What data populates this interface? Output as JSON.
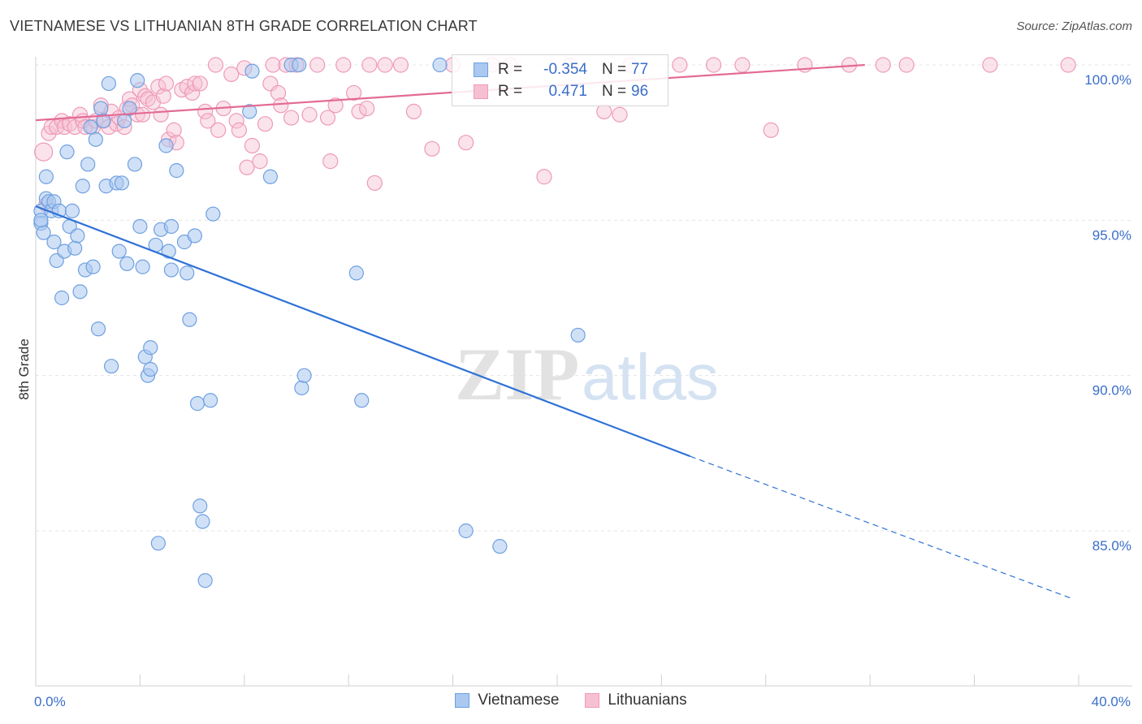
{
  "title": "VIETNAMESE VS LITHUANIAN 8TH GRADE CORRELATION CHART",
  "source": "Source: ZipAtlas.com",
  "watermark": {
    "zip": "ZIP",
    "atlas": "atlas"
  },
  "colors": {
    "vietnamese_fill": "#aac8f0",
    "vietnamese_stroke": "#6fa0e0",
    "vietnamese_line": "#2f72d6",
    "lithuanian_fill": "#f7c0d2",
    "lithuanian_stroke": "#ee9ab8",
    "lithuanian_line": "#e36b95",
    "axis_text": "#3a6ec9"
  },
  "legend": {
    "rows": [
      {
        "r_label": "R =",
        "r_value": "-0.354",
        "n_label": "N =",
        "n_value": "77"
      },
      {
        "r_label": "R =",
        "r_value": "0.471",
        "n_label": "N =",
        "n_value": "96"
      }
    ]
  },
  "bottom_legend": [
    "Vietnamese",
    "Lithuanians"
  ],
  "chart_data": {
    "type": "scatter",
    "title": "VIETNAMESE VS LITHUANIAN 8TH GRADE CORRELATION CHART",
    "xlabel": "",
    "ylabel": "8th Grade",
    "xlim": [
      0,
      40
    ],
    "ylim": [
      80.8,
      100.9
    ],
    "x_tick_labels": [
      "0.0%",
      "40.0%"
    ],
    "y_ticks": [
      100,
      95,
      90,
      85
    ],
    "y_tick_labels": [
      "100.0%",
      "95.0%",
      "90.0%",
      "85.0%"
    ],
    "grid": true,
    "legend_position": "top-center",
    "series": [
      {
        "name": "Vietnamese",
        "points": [
          [
            0.2,
            95.3
          ],
          [
            0.2,
            94.9
          ],
          [
            0.3,
            94.6
          ],
          [
            0.4,
            95.7
          ],
          [
            0.4,
            96.4
          ],
          [
            0.5,
            95.6
          ],
          [
            0.6,
            95.3
          ],
          [
            0.7,
            95.6
          ],
          [
            0.7,
            94.3
          ],
          [
            0.8,
            93.7
          ],
          [
            0.9,
            95.3
          ],
          [
            1.0,
            92.5
          ],
          [
            1.1,
            94.0
          ],
          [
            1.2,
            97.2
          ],
          [
            1.3,
            94.8
          ],
          [
            1.4,
            95.3
          ],
          [
            1.5,
            94.1
          ],
          [
            1.6,
            94.5
          ],
          [
            1.7,
            92.7
          ],
          [
            1.8,
            96.1
          ],
          [
            1.9,
            93.4
          ],
          [
            2.0,
            96.8
          ],
          [
            2.1,
            98.0
          ],
          [
            2.2,
            93.5
          ],
          [
            2.3,
            97.6
          ],
          [
            2.4,
            91.5
          ],
          [
            2.5,
            98.6
          ],
          [
            2.6,
            98.2
          ],
          [
            2.7,
            96.1
          ],
          [
            2.8,
            99.4
          ],
          [
            2.9,
            90.3
          ],
          [
            3.1,
            96.2
          ],
          [
            3.2,
            94.0
          ],
          [
            3.3,
            96.2
          ],
          [
            3.4,
            98.2
          ],
          [
            3.5,
            93.6
          ],
          [
            3.6,
            98.6
          ],
          [
            3.8,
            96.8
          ],
          [
            3.9,
            99.5
          ],
          [
            4.0,
            94.8
          ],
          [
            4.1,
            93.5
          ],
          [
            4.2,
            90.6
          ],
          [
            4.3,
            90.0
          ],
          [
            4.4,
            90.9
          ],
          [
            4.4,
            90.2
          ],
          [
            4.6,
            94.2
          ],
          [
            4.7,
            84.6
          ],
          [
            4.8,
            94.7
          ],
          [
            5.0,
            97.4
          ],
          [
            5.1,
            94.0
          ],
          [
            5.2,
            93.4
          ],
          [
            5.2,
            94.8
          ],
          [
            5.4,
            96.6
          ],
          [
            5.7,
            94.3
          ],
          [
            5.8,
            93.3
          ],
          [
            5.9,
            91.8
          ],
          [
            6.1,
            94.5
          ],
          [
            6.2,
            89.1
          ],
          [
            6.3,
            85.8
          ],
          [
            6.4,
            85.3
          ],
          [
            6.5,
            83.4
          ],
          [
            6.7,
            89.2
          ],
          [
            6.8,
            95.2
          ],
          [
            8.2,
            98.5
          ],
          [
            8.3,
            99.8
          ],
          [
            9.0,
            96.4
          ],
          [
            9.8,
            100.0
          ],
          [
            10.1,
            100.0
          ],
          [
            10.2,
            89.6
          ],
          [
            10.3,
            90.0
          ],
          [
            12.3,
            93.3
          ],
          [
            12.5,
            89.2
          ],
          [
            15.5,
            100.0
          ],
          [
            16.5,
            85.0
          ],
          [
            17.8,
            84.5
          ],
          [
            20.8,
            91.3
          ],
          [
            0.2,
            95.0
          ]
        ],
        "trend": {
          "x": [
            0,
            25.1
          ],
          "y": [
            95.45,
            87.4
          ]
        },
        "trend_dashed": {
          "x": [
            25.1,
            39.8
          ],
          "y": [
            87.4,
            82.8
          ]
        }
      },
      {
        "name": "Lithuanians",
        "points": [
          [
            0.3,
            97.2
          ],
          [
            0.4,
            95.5
          ],
          [
            0.5,
            97.8
          ],
          [
            0.6,
            98.0
          ],
          [
            0.8,
            98.0
          ],
          [
            1.0,
            98.2
          ],
          [
            1.1,
            98.0
          ],
          [
            1.3,
            98.1
          ],
          [
            1.5,
            98.0
          ],
          [
            1.7,
            98.4
          ],
          [
            1.8,
            98.2
          ],
          [
            1.9,
            98.0
          ],
          [
            2.2,
            98.0
          ],
          [
            2.3,
            98.2
          ],
          [
            2.5,
            98.7
          ],
          [
            2.6,
            98.2
          ],
          [
            2.8,
            98.0
          ],
          [
            2.9,
            98.5
          ],
          [
            3.1,
            98.1
          ],
          [
            3.2,
            98.3
          ],
          [
            3.4,
            98.0
          ],
          [
            3.5,
            98.6
          ],
          [
            3.6,
            98.9
          ],
          [
            3.7,
            98.7
          ],
          [
            3.9,
            98.4
          ],
          [
            4.0,
            99.2
          ],
          [
            4.1,
            98.4
          ],
          [
            4.2,
            99.0
          ],
          [
            4.3,
            98.9
          ],
          [
            4.5,
            98.8
          ],
          [
            4.7,
            99.3
          ],
          [
            4.8,
            98.4
          ],
          [
            4.9,
            99.0
          ],
          [
            5.0,
            99.4
          ],
          [
            5.1,
            97.6
          ],
          [
            5.3,
            97.9
          ],
          [
            5.4,
            97.5
          ],
          [
            5.6,
            99.2
          ],
          [
            5.8,
            99.3
          ],
          [
            6.0,
            99.1
          ],
          [
            6.1,
            99.4
          ],
          [
            6.3,
            99.4
          ],
          [
            6.5,
            98.5
          ],
          [
            6.6,
            98.2
          ],
          [
            6.9,
            100.0
          ],
          [
            7.0,
            97.9
          ],
          [
            7.2,
            98.6
          ],
          [
            7.5,
            99.7
          ],
          [
            7.7,
            98.2
          ],
          [
            7.8,
            97.9
          ],
          [
            8.0,
            99.9
          ],
          [
            8.1,
            96.7
          ],
          [
            8.3,
            97.4
          ],
          [
            8.6,
            96.9
          ],
          [
            8.8,
            98.1
          ],
          [
            9.0,
            99.4
          ],
          [
            9.1,
            100.0
          ],
          [
            9.3,
            99.1
          ],
          [
            9.4,
            98.7
          ],
          [
            9.6,
            100.0
          ],
          [
            9.8,
            98.3
          ],
          [
            10.0,
            100.0
          ],
          [
            10.5,
            98.4
          ],
          [
            10.8,
            100.0
          ],
          [
            11.2,
            98.3
          ],
          [
            11.3,
            96.9
          ],
          [
            11.5,
            98.7
          ],
          [
            11.8,
            100.0
          ],
          [
            12.2,
            99.1
          ],
          [
            12.4,
            98.5
          ],
          [
            12.7,
            98.6
          ],
          [
            12.8,
            100.0
          ],
          [
            13.0,
            96.2
          ],
          [
            13.4,
            100.0
          ],
          [
            14.0,
            100.0
          ],
          [
            14.5,
            98.5
          ],
          [
            15.2,
            97.3
          ],
          [
            16.0,
            100.0
          ],
          [
            16.5,
            97.5
          ],
          [
            17.5,
            100.0
          ],
          [
            18.2,
            100.0
          ],
          [
            19.5,
            96.4
          ],
          [
            20.5,
            100.0
          ],
          [
            21.8,
            98.5
          ],
          [
            22.4,
            98.4
          ],
          [
            22.8,
            100.0
          ],
          [
            24.7,
            100.0
          ],
          [
            26.0,
            100.0
          ],
          [
            27.1,
            100.0
          ],
          [
            28.2,
            97.9
          ],
          [
            29.5,
            100.0
          ],
          [
            31.2,
            100.0
          ],
          [
            32.5,
            100.0
          ],
          [
            33.4,
            100.0
          ],
          [
            36.6,
            100.0
          ],
          [
            39.6,
            100.0
          ]
        ],
        "trend": {
          "x": [
            0,
            31.8
          ],
          "y": [
            98.22,
            100.0
          ]
        }
      }
    ]
  }
}
